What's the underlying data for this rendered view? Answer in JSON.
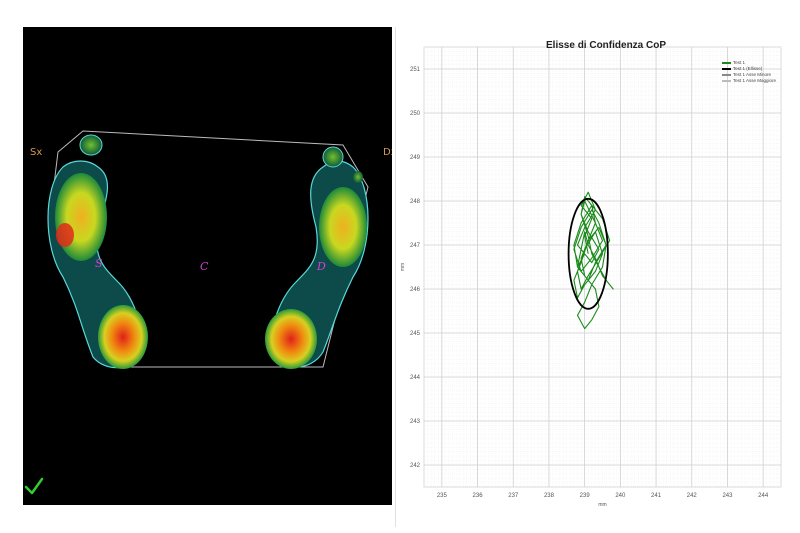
{
  "pressure_map": {
    "left_label": "Sx",
    "right_label": "Dx",
    "left_marker": "S",
    "center_marker": "C",
    "right_marker": "D",
    "check_color": "#33cc33"
  },
  "chart_data": {
    "type": "line",
    "title": "Elisse di Confidenza CoP",
    "xlabel": "mm",
    "ylabel": "mm",
    "x_ticks": [
      "235",
      "236",
      "237",
      "238",
      "239",
      "240",
      "241",
      "242",
      "243",
      "244"
    ],
    "y_ticks": [
      "251",
      "250",
      "249",
      "248",
      "247",
      "246",
      "245",
      "244",
      "243",
      "242"
    ],
    "xlim": [
      234.5,
      244.5
    ],
    "ylim": [
      241.5,
      251.5
    ],
    "grid": true,
    "legend_position": "top-right",
    "legend": [
      {
        "name": "Test 1",
        "color": "#1a8a1a"
      },
      {
        "name": "Test 1 (Ellisse)",
        "color": "#000000"
      },
      {
        "name": "Test 1 Asse Minore",
        "color": "#888888"
      },
      {
        "name": "Test 1 Asse Maggiore",
        "color": "#bbbbbb"
      }
    ],
    "ellipse": {
      "cx": 239.1,
      "cy": 246.8,
      "rx": 0.55,
      "ry": 1.25,
      "color": "#000000"
    },
    "series": [
      {
        "name": "Test 1",
        "color": "#1a8a1a",
        "x": [
          239.1,
          239.0,
          239.2,
          238.9,
          239.1,
          239.3,
          239.0,
          238.8,
          239.2,
          239.4,
          239.1,
          238.9,
          239.0,
          239.3,
          239.5,
          239.2,
          238.9,
          238.7,
          238.9,
          239.2,
          239.4,
          239.6,
          239.3,
          239.1,
          238.8,
          238.7,
          238.9,
          239.2,
          239.5,
          239.7,
          239.4,
          239.1,
          238.9,
          238.8,
          239.0,
          239.3,
          239.5,
          239.3,
          239.0,
          238.8,
          238.7,
          238.9,
          239.1,
          239.4,
          239.6,
          239.5,
          239.2,
          239.0,
          238.8,
          239.0,
          239.2,
          239.4,
          239.3,
          239.0,
          238.9,
          239.1,
          239.3,
          239.2,
          239.0,
          238.9,
          239.1,
          239.2,
          239.4,
          239.6,
          239.8,
          239.5,
          239.3,
          239.1,
          239.0,
          238.9,
          238.8,
          239.0
        ],
        "y": [
          246.8,
          247.2,
          247.6,
          247.9,
          248.2,
          247.8,
          247.4,
          247.0,
          246.6,
          246.9,
          247.3,
          247.7,
          248.0,
          247.5,
          247.1,
          246.7,
          246.4,
          246.9,
          247.4,
          247.8,
          247.5,
          247.0,
          246.6,
          246.2,
          246.5,
          247.0,
          247.5,
          247.9,
          247.6,
          247.1,
          246.7,
          246.3,
          246.0,
          246.4,
          246.9,
          247.3,
          246.8,
          246.4,
          246.1,
          245.8,
          246.2,
          246.6,
          247.1,
          247.4,
          247.0,
          246.5,
          246.1,
          245.7,
          245.4,
          245.1,
          245.3,
          245.6,
          246.0,
          246.3,
          246.7,
          247.1,
          247.5,
          247.9,
          248.1,
          247.7,
          247.2,
          246.8,
          246.5,
          246.2,
          246.0,
          246.3,
          246.7,
          247.0,
          247.3,
          246.9,
          246.5,
          246.8
        ]
      }
    ]
  }
}
